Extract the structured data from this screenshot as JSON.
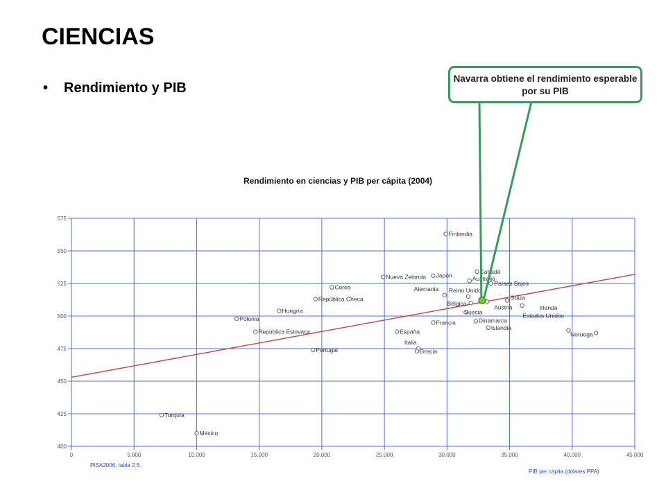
{
  "slide": {
    "title": "CIENCIAS",
    "bullet_symbol": "•",
    "bullet": "Rendimiento y PIB",
    "callout": "Navarra obtiene el rendimiento esperable por su PIB"
  },
  "chart_data": {
    "type": "scatter",
    "title": "Rendimiento en ciencias y PIB per cápita (2004)",
    "xlabel": "PIB per cápita (dólares PPA)",
    "source": "PISA2006, tabla 2.6.",
    "xlim": [
      0,
      45000
    ],
    "ylim": [
      400,
      575
    ],
    "xticks": [
      0,
      5000,
      10000,
      15000,
      20000,
      25000,
      30000,
      35000,
      40000,
      45000
    ],
    "xtick_labels": [
      "0",
      "5.000",
      "10.000",
      "15.000",
      "20.000",
      "25.000",
      "30.000",
      "35.000",
      "40.000",
      "45.000"
    ],
    "yticks": [
      400,
      425,
      450,
      475,
      500,
      525,
      550,
      575
    ],
    "grid": true,
    "colors": {
      "grid": "#4a6fd0",
      "trend": "#c0504d",
      "marker": "#555555",
      "highlight": "#7ac142"
    },
    "points": [
      {
        "label": "Finlandia",
        "x": 29900,
        "y": 563
      },
      {
        "label": "Canadá",
        "x": 32400,
        "y": 534
      },
      {
        "label": "Japón",
        "x": 28900,
        "y": 531
      },
      {
        "label": "Nueva Zelanda",
        "x": 24900,
        "y": 530
      },
      {
        "label": "Australia",
        "x": 31800,
        "y": 527
      },
      {
        "label": "Países Bajos",
        "x": 33500,
        "y": 525
      },
      {
        "label": "Corea",
        "x": 20800,
        "y": 522
      },
      {
        "label": "Alemania",
        "x": 29800,
        "y": 516
      },
      {
        "label": "Reino Unido",
        "x": 31700,
        "y": 515
      },
      {
        "label": "República Checa",
        "x": 19500,
        "y": 513
      },
      {
        "label": "Suiza",
        "x": 34800,
        "y": 512
      },
      {
        "label": "Bélgica",
        "x": 31900,
        "y": 510
      },
      {
        "label": "Austria",
        "x": 33200,
        "y": 511
      },
      {
        "label": "Irlanda",
        "x": 36000,
        "y": 508
      },
      {
        "label": "Hungría",
        "x": 16600,
        "y": 504
      },
      {
        "label": "Suecia",
        "x": 31500,
        "y": 503
      },
      {
        "label": "Polonia",
        "x": 13200,
        "y": 498
      },
      {
        "label": "Dinamarca",
        "x": 32300,
        "y": 496
      },
      {
        "label": "Francia",
        "x": 28900,
        "y": 495
      },
      {
        "label": "Islandia",
        "x": 33300,
        "y": 491
      },
      {
        "label": "Estados Unidos",
        "x": 39700,
        "y": 489
      },
      {
        "label": "República Eslovaca",
        "x": 14700,
        "y": 488
      },
      {
        "label": "España",
        "x": 26000,
        "y": 488
      },
      {
        "label": "Noruega",
        "x": 41900,
        "y": 487
      },
      {
        "label": "Italia",
        "x": 27700,
        "y": 475
      },
      {
        "label": "Portugal",
        "x": 19300,
        "y": 474
      },
      {
        "label": "Grecia",
        "x": 27600,
        "y": 473
      },
      {
        "label": "Turquía",
        "x": 7200,
        "y": 424
      },
      {
        "label": "México",
        "x": 10000,
        "y": 410
      }
    ],
    "highlight": {
      "label": "Navarra",
      "x": 32800,
      "y": 512
    },
    "trendline": {
      "x": [
        0,
        45000
      ],
      "y": [
        453,
        532
      ]
    }
  }
}
